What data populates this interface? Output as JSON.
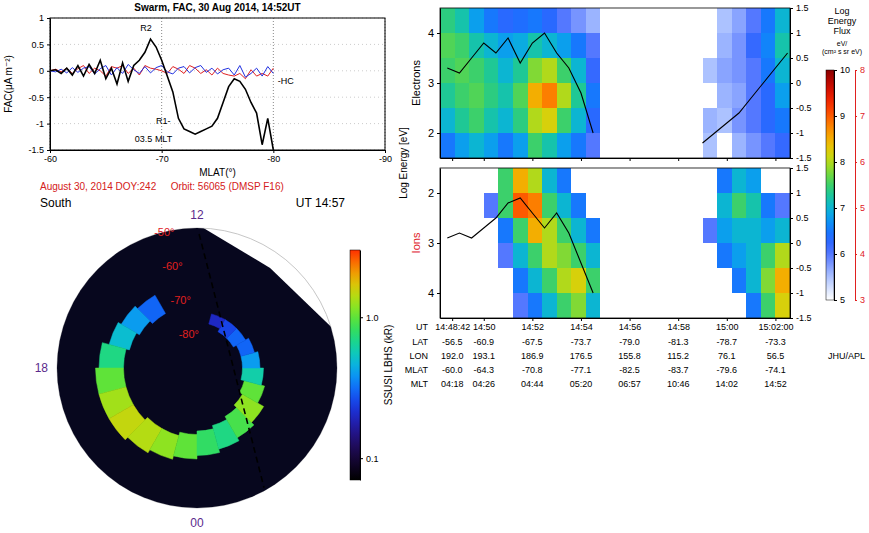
{
  "chart_data": [
    {
      "type": "line",
      "title": "Swarm, FAC, 30 Aug 2014, 14:52UT",
      "xlabel": "MLAT(°)",
      "ylabel": "FAC(μA m⁻²)",
      "xlim": [
        -60,
        -90
      ],
      "xticks": [
        -60,
        -70,
        -80,
        -90
      ],
      "ylim": [
        -1.5,
        1
      ],
      "yticks": [
        -1.5,
        -1,
        -0.5,
        0,
        0.5,
        1
      ],
      "grid": true,
      "x": [
        -60,
        -60.5,
        -61,
        -61.5,
        -62,
        -62.5,
        -63,
        -63.5,
        -64,
        -64.5,
        -65,
        -65.5,
        -66,
        -66.5,
        -67,
        -67.5,
        -68,
        -68.5,
        -69,
        -69.5,
        -70,
        -70.5,
        -71,
        -71.5,
        -72,
        -72.5,
        -73,
        -73.5,
        -74,
        -74.5,
        -75,
        -75.5,
        -76,
        -76.5,
        -77,
        -77.5,
        -78,
        -78.5,
        -79,
        -79.5,
        -80
      ],
      "series": [
        {
          "color": "#000000",
          "values": [
            0,
            0.02,
            -0.05,
            0.05,
            -0.08,
            0.1,
            -0.1,
            0.12,
            -0.05,
            0.2,
            -0.15,
            0.05,
            -0.25,
            0.15,
            -0.2,
            0.1,
            0.2,
            0.35,
            0.6,
            0.45,
            0.2,
            -0.1,
            -0.4,
            -0.9,
            -1.1,
            -1.15,
            -1.2,
            -1.15,
            -1.1,
            -1.05,
            -0.9,
            -0.6,
            -0.3,
            -0.15,
            -0.2,
            -0.35,
            -0.6,
            -0.8,
            -1.4,
            -0.9,
            -1.5
          ]
        },
        {
          "color": "#e02020",
          "values": [
            0,
            0.03,
            -0.02,
            0.05,
            -0.05,
            0.04,
            0.1,
            -0.05,
            0.05,
            0,
            -0.1,
            0.08,
            0.05,
            0.1,
            -0.05,
            0.05,
            -0.08,
            0.1,
            0.05,
            0.03,
            0,
            -0.05,
            0.08,
            0.03,
            -0.05,
            0.1,
            0.05,
            -0.05,
            0.02,
            -0.08,
            0.05,
            -0.05,
            -0.08,
            -0.1,
            -0.05,
            -0.15,
            0.02,
            -0.1,
            -0.05,
            -0.1,
            0.05
          ]
        },
        {
          "color": "#2030e0",
          "values": [
            0,
            -0.02,
            0.03,
            -0.04,
            0.06,
            -0.03,
            0.05,
            0.08,
            -0.06,
            0.04,
            0.1,
            -0.08,
            0.06,
            -0.05,
            0.12,
            0.02,
            -0.05,
            0.08,
            -0.04,
            0.06,
            0.1,
            -0.02,
            -0.06,
            0.05,
            0.08,
            -0.04,
            0.06,
            0.1,
            -0.03,
            0.05,
            -0.06,
            0.02,
            0.05,
            -0.08,
            0.1,
            -0.12,
            -0.05,
            0.05,
            -0.1,
            0.08,
            -0.05
          ]
        }
      ],
      "annotations": [
        {
          "text": "R2",
          "x": -68.6,
          "y": 0.75
        },
        {
          "text": "R1-",
          "x": -70.8,
          "y": -1.0
        },
        {
          "text": "03.5 MLT",
          "x": -67.6,
          "y": -1.35
        },
        {
          "text": "-HC",
          "x": -80.4,
          "y": -0.25
        }
      ]
    },
    {
      "type": "polar",
      "title": "August 30, 2014 DOY:242",
      "subtitle": "Orbit: 56065 (DMSP F16)",
      "hemisphere": "South",
      "time": "UT 14:57",
      "rlim": [
        -90,
        -50
      ],
      "rticks": [
        {
          "value": -50,
          "label": "-50°"
        },
        {
          "value": -60,
          "label": "-60°"
        },
        {
          "value": -70,
          "label": "-70°"
        },
        {
          "value": -80,
          "label": "-80°"
        }
      ],
      "mlt_ticks": [
        {
          "value": 12,
          "label": "12"
        },
        {
          "value": 18,
          "label": "18"
        },
        {
          "value": 0,
          "label": "00"
        }
      ],
      "grid": true,
      "swath": {
        "mlt": [
          15.57,
          13.97,
          11.92,
          9.59,
          6.71,
          3.69,
          1.91,
          22.85,
          20.46
        ],
        "mlat": [
          -37.1,
          -45.4,
          -49.4,
          -54.6,
          -47.0,
          -38.7,
          -40.6,
          -44.6,
          -36.8
        ]
      },
      "oval": {
        "mlt": [
          14,
          15,
          16,
          17,
          18,
          19,
          20,
          21,
          22,
          23,
          0,
          1,
          2,
          3,
          4,
          5,
          6,
          7,
          8,
          9,
          10
        ],
        "poleward": [
          -72,
          -71,
          -70,
          -69,
          -69,
          -69,
          -69,
          -70,
          -70,
          -71,
          -72,
          -73,
          -74,
          -75,
          -76,
          -77,
          -77,
          -77,
          -78,
          -78,
          -77
        ],
        "equatorward": [
          -66,
          -65,
          -64,
          -62,
          -61,
          -61,
          -61,
          -62,
          -63,
          -64,
          -65,
          -66,
          -67,
          -68,
          -70,
          -71,
          -72,
          -73,
          -74,
          -74,
          -74
        ],
        "intensity": [
          0.3,
          0.4,
          0.5,
          0.7,
          1.0,
          1.3,
          1.5,
          1.4,
          1.2,
          1.0,
          0.8,
          0.7,
          0.9,
          1.2,
          1.0,
          0.6,
          0.4,
          0.3,
          0.3,
          0.25,
          0.2
        ]
      },
      "track": {
        "mlt": [
          11.94,
          11.41,
          9.97,
          6.98,
          3.77,
          2.45,
          1.95
        ],
        "mlat": [
          -51.7,
          -64.4,
          -75.7,
          -79.9,
          -75.0,
          -63.5,
          -50.8
        ],
        "color": "#000000",
        "line_style": "dashed"
      },
      "colorbar": {
        "title": "SSUSI LBHS (kR)",
        "lim": [
          0.07,
          3
        ],
        "ticks": [
          {
            "value": 1,
            "label": "1.0"
          },
          0.1
        ],
        "log": true
      }
    },
    {
      "type": "heatmap",
      "ylabel": "Electrons",
      "energy_label": "Log Energy [eV]",
      "xlim": [
        48.2,
        62.6
      ],
      "xticks": [
        48.7,
        50,
        52,
        54,
        56,
        58,
        60,
        62
      ],
      "tick_labels": "y",
      "ylim": [
        1.5,
        4.5
      ],
      "yticks": [
        2,
        3,
        4
      ],
      "y2lim": [
        -1.5,
        1.5
      ],
      "y2ticks": [
        -1.5,
        -1,
        -0.5,
        0,
        0.5,
        1,
        1.5
      ],
      "x_bins": [
        48.2,
        48.8,
        49.4,
        50.0,
        50.6,
        51.2,
        51.8,
        52.4,
        53.0,
        53.6,
        54.2,
        54.8,
        55.4,
        56.0,
        56.6,
        57.2,
        57.8,
        58.4,
        59.0,
        59.6,
        60.2,
        60.8,
        61.4,
        62.0,
        62.6
      ],
      "y_bins": [
        1.5,
        2,
        2.5,
        3,
        3.5,
        4,
        4.5
      ],
      "cells": [
        [
          6.5,
          6.8,
          7.0,
          6.8,
          6.5,
          6.8,
          7.5,
          7.2,
          6.8,
          6.5,
          6.0,
          null,
          null,
          null,
          null,
          null,
          null,
          null,
          5.5,
          null,
          5.6,
          5.8,
          6.0,
          6.2
        ],
        [
          7.0,
          7.3,
          7.5,
          7.2,
          7.0,
          7.4,
          8.0,
          8.2,
          7.5,
          7.0,
          6.3,
          null,
          null,
          null,
          null,
          null,
          null,
          null,
          5.6,
          5.5,
          5.8,
          6.0,
          6.3,
          6.5
        ],
        [
          7.3,
          7.5,
          7.6,
          7.4,
          7.2,
          7.6,
          8.5,
          8.8,
          8.0,
          7.3,
          6.5,
          null,
          null,
          null,
          null,
          null,
          null,
          null,
          null,
          5.6,
          5.7,
          6.0,
          6.3,
          6.8
        ],
        [
          7.5,
          7.6,
          7.5,
          7.3,
          7.0,
          7.3,
          7.8,
          8.0,
          7.5,
          7.0,
          6.2,
          null,
          null,
          null,
          null,
          null,
          null,
          null,
          5.5,
          5.7,
          5.8,
          6.0,
          6.5,
          7.0
        ],
        [
          7.6,
          7.5,
          7.2,
          7.0,
          6.8,
          6.9,
          7.2,
          7.0,
          6.8,
          6.5,
          6.0,
          null,
          null,
          null,
          null,
          null,
          null,
          null,
          null,
          5.6,
          5.8,
          6.2,
          6.6,
          7.2
        ],
        [
          7.4,
          7.2,
          6.8,
          6.5,
          6.3,
          6.4,
          6.5,
          6.3,
          6.0,
          5.8,
          5.6,
          null,
          null,
          null,
          null,
          null,
          null,
          null,
          null,
          5.5,
          5.7,
          6.0,
          6.5,
          7.0
        ]
      ],
      "line": {
        "color": "#000000",
        "axis": "y2",
        "x": [
          48.5,
          49,
          49.5,
          50,
          50.5,
          51,
          51.5,
          52,
          52.5,
          53,
          53.5,
          54,
          54.5,
          55,
          55.5,
          56,
          56.5,
          57,
          57.5,
          58,
          58.5,
          59,
          59.5,
          60,
          60.5,
          61,
          61.5,
          62,
          62.5
        ],
        "values": [
          0.3,
          0.2,
          0.5,
          0.8,
          0.6,
          0.9,
          0.4,
          0.8,
          1.0,
          0.6,
          0.3,
          -0.2,
          -1.0,
          null,
          null,
          null,
          null,
          null,
          null,
          null,
          null,
          -1.2,
          -1.0,
          -0.8,
          -0.6,
          -0.3,
          0.0,
          0.3,
          0.6
        ]
      },
      "colorbar": {
        "title": "Log Energy Flux",
        "units": "eV/(cm² s sr eV)",
        "lim": [
          5,
          10
        ],
        "ticks": [
          5,
          6,
          7,
          8,
          9,
          10
        ]
      }
    },
    {
      "type": "heatmap",
      "ylabel": "Ions",
      "xlabel": "UT",
      "xlim": [
        48.2,
        62.6
      ],
      "xticks": [
        {
          "value": 48.7,
          "label": "14:48:42"
        },
        {
          "value": 50,
          "label": "14:50"
        },
        {
          "value": 52,
          "label": "14:52"
        },
        {
          "value": 54,
          "label": "14:54"
        },
        {
          "value": 56,
          "label": "14:56"
        },
        {
          "value": 58,
          "label": "14:58"
        },
        {
          "value": 60,
          "label": "15:00"
        },
        {
          "value": 62,
          "label": "15:02:00"
        }
      ],
      "ylim": [
        4.5,
        1.5
      ],
      "yticks": [
        2,
        3,
        4
      ],
      "y2lim": [
        -1.5,
        1.5
      ],
      "y2ticks": [
        -1.5,
        -1,
        -0.5,
        0,
        0.5,
        1,
        1.5
      ],
      "x_bins": [
        48.2,
        48.8,
        49.4,
        50.0,
        50.6,
        51.2,
        51.8,
        52.4,
        53.0,
        53.6,
        54.2,
        54.8,
        55.4,
        56.0,
        56.6,
        57.2,
        57.8,
        58.4,
        59.0,
        59.6,
        60.2,
        60.8,
        61.4,
        62.0,
        62.6
      ],
      "y_bins": [
        1.5,
        2,
        2.5,
        3,
        3.5,
        4,
        4.5
      ],
      "cells": [
        [
          null,
          null,
          null,
          null,
          5.5,
          6.5,
          6.0,
          5.0,
          4.5,
          null,
          null,
          null,
          null,
          null,
          null,
          null,
          null,
          null,
          null,
          4.5,
          5.0,
          4.8,
          null,
          null
        ],
        [
          null,
          null,
          null,
          4.0,
          5.5,
          7.0,
          6.8,
          5.5,
          5.0,
          4.5,
          null,
          null,
          null,
          null,
          null,
          null,
          null,
          null,
          null,
          5.0,
          5.5,
          5.2,
          4.5,
          4.0
        ],
        [
          null,
          null,
          null,
          null,
          4.5,
          5.5,
          6.5,
          6.0,
          5.5,
          5.0,
          4.5,
          null,
          null,
          null,
          null,
          null,
          null,
          null,
          4.0,
          4.8,
          5.0,
          5.0,
          4.8,
          5.0
        ],
        [
          null,
          null,
          null,
          null,
          4.0,
          5.0,
          5.5,
          6.0,
          5.8,
          5.5,
          5.0,
          null,
          null,
          null,
          null,
          null,
          null,
          null,
          null,
          4.5,
          4.8,
          5.0,
          5.5,
          6.0
        ],
        [
          null,
          null,
          null,
          null,
          null,
          4.5,
          5.0,
          5.5,
          6.0,
          6.2,
          5.5,
          null,
          null,
          null,
          null,
          null,
          null,
          null,
          null,
          null,
          4.5,
          5.0,
          5.8,
          6.5
        ],
        [
          null,
          null,
          null,
          null,
          null,
          4.0,
          4.5,
          5.0,
          5.5,
          5.8,
          5.0,
          null,
          null,
          null,
          null,
          null,
          null,
          null,
          null,
          null,
          null,
          4.5,
          5.5,
          6.2
        ]
      ],
      "line": {
        "color": "#000000",
        "axis": "y2",
        "x": [
          48.5,
          49,
          49.5,
          50,
          50.5,
          51,
          51.5,
          52,
          52.5,
          53,
          53.5,
          54,
          54.5,
          55,
          55.5,
          56,
          56.5,
          57,
          57.5,
          58,
          58.5,
          59,
          59.5,
          60,
          60.5,
          61,
          61.5,
          62,
          62.5
        ],
        "values": [
          0.1,
          0.2,
          0.1,
          0.3,
          0.5,
          0.8,
          0.9,
          0.6,
          0.3,
          0.6,
          0.2,
          -0.4,
          -1.0,
          null,
          null,
          null,
          null,
          null,
          null,
          null,
          null,
          null,
          null,
          null,
          null,
          null,
          null,
          null,
          null
        ]
      },
      "colorbar": {
        "lim": [
          3,
          8
        ],
        "ticks": [
          3,
          4,
          5,
          6,
          7,
          8
        ]
      },
      "rows": [
        {
          "label": "LAT",
          "values": [
            "-56.5",
            "-60.9",
            "-67.5",
            "-73.7",
            "-79.0",
            "-81.3",
            "-78.7",
            "-73.3"
          ]
        },
        {
          "label": "LON",
          "values": [
            "192.0",
            "193.1",
            "186.9",
            "176.5",
            "155.8",
            "115.2",
            "76.1",
            "56.5"
          ]
        },
        {
          "label": "MLAT",
          "values": [
            "-60.0",
            "-64.3",
            "-70.8",
            "-77.1",
            "-82.5",
            "-83.7",
            "-79.6",
            "-74.1"
          ]
        },
        {
          "label": "MLT",
          "values": [
            "04:18",
            "04:26",
            "04:44",
            "05:20",
            "06:57",
            "10:46",
            "14:02",
            "14:52"
          ]
        }
      ],
      "credit": "JHU/APL"
    }
  ]
}
